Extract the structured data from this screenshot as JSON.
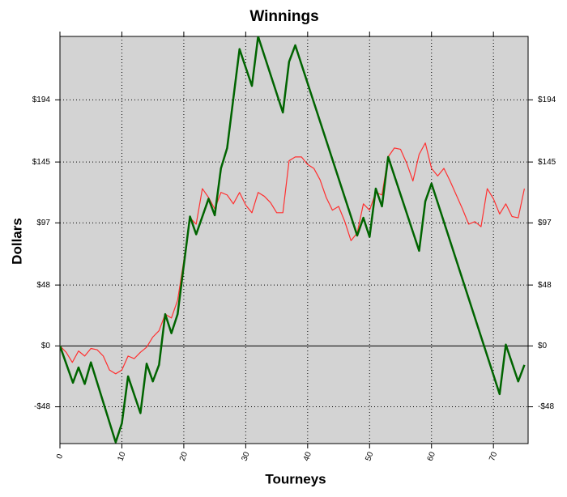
{
  "chart_data": {
    "type": "line",
    "title": "Winnings",
    "x_label": "Tourneys",
    "y_label": "Dollars",
    "xlim": [
      0,
      75.6
    ],
    "xticks": [
      0,
      10,
      20,
      30,
      40,
      50,
      60,
      70
    ],
    "ylim": [
      -77,
      244
    ],
    "yticks": [
      {
        "value": -48,
        "label": "-$48"
      },
      {
        "value": 0,
        "label": "$0"
      },
      {
        "value": 48,
        "label": "$48"
      },
      {
        "value": 97,
        "label": "$97"
      },
      {
        "value": 145,
        "label": "$145"
      },
      {
        "value": 194,
        "label": "$194"
      }
    ],
    "grid": true,
    "series": [
      {
        "color": "#ff3030",
        "width": 1.2,
        "x": [
          0,
          1,
          2,
          3,
          4,
          5,
          6,
          7,
          8,
          9,
          10,
          11,
          12,
          13,
          14,
          15,
          16,
          17,
          18,
          19,
          20,
          21,
          22,
          23,
          24,
          25,
          26,
          27,
          28,
          29,
          30,
          31,
          32,
          33,
          34,
          35,
          36,
          37,
          38,
          39,
          40,
          41,
          42,
          43,
          44,
          45,
          46,
          47,
          48,
          49,
          50,
          51,
          52,
          53,
          54,
          55,
          56,
          57,
          58,
          59,
          60,
          61,
          62,
          63,
          64,
          65,
          66,
          67,
          68,
          69,
          70,
          71,
          72,
          73,
          74,
          75
        ],
        "values": [
          0,
          -5,
          -13,
          -4,
          -8,
          -2,
          -3,
          -8,
          -19,
          -22,
          -19,
          -8,
          -10,
          -5,
          -1,
          7,
          12,
          25,
          22,
          36,
          67,
          101,
          96,
          124,
          117,
          108,
          121,
          119,
          112,
          121,
          111,
          105,
          121,
          118,
          113,
          105,
          105,
          146,
          149,
          149,
          143,
          140,
          131,
          117,
          107,
          110,
          98,
          83,
          89,
          112,
          107,
          121,
          119,
          149,
          156,
          155,
          144,
          130,
          151,
          160,
          140,
          134,
          140,
          130,
          119,
          108,
          96,
          98,
          94,
          124,
          116,
          104,
          112,
          102,
          101,
          124
        ]
      },
      {
        "color": "#006400",
        "width": 2.5,
        "x": [
          0,
          2.1,
          3,
          4,
          5,
          9,
          10,
          11,
          13,
          14,
          15,
          16,
          17,
          18,
          19,
          21,
          22,
          24,
          25,
          26,
          27,
          29,
          31,
          32,
          36,
          37,
          38,
          48,
          49,
          50,
          51,
          52,
          53,
          58,
          59,
          60,
          71,
          72,
          74,
          75
        ],
        "values": [
          0,
          -29,
          -17,
          -30,
          -13,
          -76,
          -61,
          -24,
          -53,
          -14,
          -28,
          -15,
          25,
          10,
          25,
          102,
          88,
          116,
          103,
          140,
          156,
          234,
          205,
          244,
          184,
          224,
          237,
          87,
          101,
          86,
          124,
          110,
          149,
          75,
          114,
          128,
          -38,
          1,
          -28,
          -15
        ]
      }
    ]
  }
}
